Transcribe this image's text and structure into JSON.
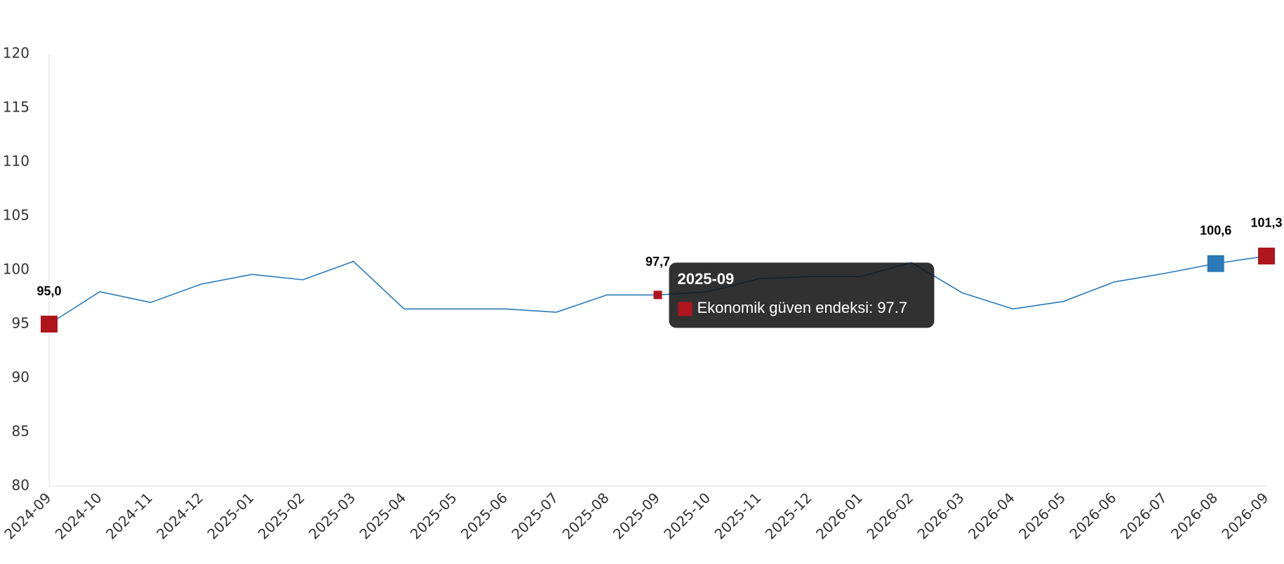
{
  "chart_data": {
    "type": "line",
    "categories": [
      "2024-09",
      "2024-10",
      "2024-11",
      "2024-12",
      "2025-01",
      "2025-02",
      "2025-03",
      "2025-04",
      "2025-05",
      "2025-06",
      "2025-07",
      "2025-08",
      "2025-09",
      "2025-10",
      "2025-11",
      "2025-12",
      "2026-01",
      "2026-02",
      "2026-03",
      "2026-04",
      "2026-05",
      "2026-06",
      "2026-07",
      "2026-08",
      "2026-09"
    ],
    "series": [
      {
        "name": "Ekonomik güven endeksi",
        "color": "#2a7ab8",
        "values": [
          95.0,
          98.0,
          97.0,
          98.7,
          99.6,
          99.1,
          100.8,
          96.4,
          96.4,
          96.4,
          96.1,
          97.7,
          97.7,
          98.0,
          99.2,
          99.4,
          99.4,
          100.7,
          97.9,
          96.4,
          97.1,
          98.9,
          99.7,
          100.6,
          101.3
        ],
        "value_labels": [
          "95,0",
          null,
          null,
          null,
          null,
          null,
          null,
          null,
          null,
          null,
          null,
          null,
          "97,7",
          null,
          null,
          null,
          null,
          null,
          null,
          null,
          null,
          null,
          null,
          "100,6",
          "101,3"
        ],
        "marker_colors": [
          "#b0141c",
          null,
          null,
          null,
          null,
          null,
          null,
          null,
          null,
          null,
          null,
          null,
          "#b0141c",
          null,
          null,
          null,
          null,
          null,
          null,
          null,
          null,
          null,
          null,
          "#2a7ab8",
          "#b0141c"
        ]
      }
    ],
    "ylim": [
      80,
      120
    ],
    "yticks": [
      80,
      85,
      90,
      95,
      100,
      105,
      110,
      115,
      120
    ],
    "grid": false,
    "tooltip": {
      "title": "2025-09",
      "text": "Ekonomik güven endeksi: 97.7",
      "color": "#b0141c"
    }
  }
}
